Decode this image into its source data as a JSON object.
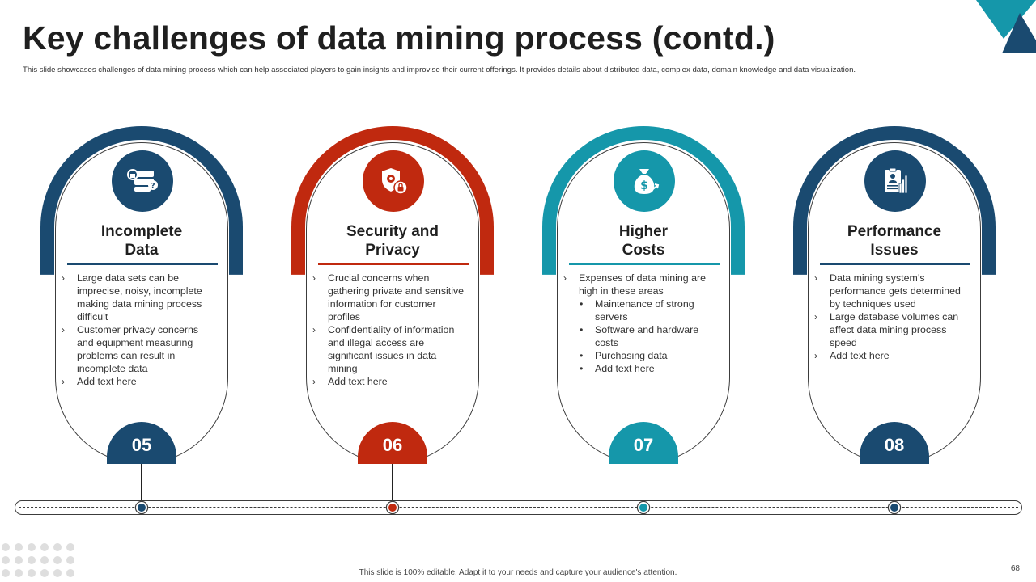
{
  "title": "Key challenges of data mining process (contd.)",
  "subtitle": "This slide showcases challenges of data mining process which can help associated players to gain insights and improvise their current offerings. It provides details about distributed data, complex data, domain knowledge and data visualization.",
  "colors": {
    "navy": "#1a4a70",
    "red": "#c0290f",
    "teal": "#1597aa",
    "dark_teal": "#0f7f91"
  },
  "cards": [
    {
      "number": "05",
      "heading_line1": "Incomplete",
      "heading_line2": "Data",
      "icon": "data-question-icon",
      "color": "#1a4a70",
      "bullets": [
        "Large data sets can be imprecise, noisy, incomplete making data mining process difficult",
        "Customer privacy concerns and equipment measuring problems can result in incomplete data",
        "Add text here"
      ]
    },
    {
      "number": "06",
      "heading_line1": "Security and",
      "heading_line2": "Privacy",
      "icon": "shield-lock-icon",
      "color": "#c0290f",
      "bullets": [
        "Crucial concerns when gathering private and sensitive information for customer profiles",
        "Confidentiality of information and illegal access are significant issues in data mining",
        "Add text here"
      ]
    },
    {
      "number": "07",
      "heading_line1": "Higher",
      "heading_line2": "Costs",
      "icon": "money-bag-icon",
      "color": "#1597aa",
      "intro": "Expenses of data mining are high in these areas",
      "sub_bullets": [
        "Maintenance of strong servers",
        "Software and hardware costs",
        "Purchasing data",
        "Add text here"
      ]
    },
    {
      "number": "08",
      "heading_line1": "Performance",
      "heading_line2": "Issues",
      "icon": "report-chart-icon",
      "color": "#1a4a70",
      "bullets": [
        "Data mining system’s performance gets determined by techniques used",
        "Large database volumes can affect data mining process speed",
        "Add text here"
      ]
    }
  ],
  "footer": "This slide is 100% editable. Adapt it to your needs and capture your audience's attention.",
  "page_number": "68"
}
